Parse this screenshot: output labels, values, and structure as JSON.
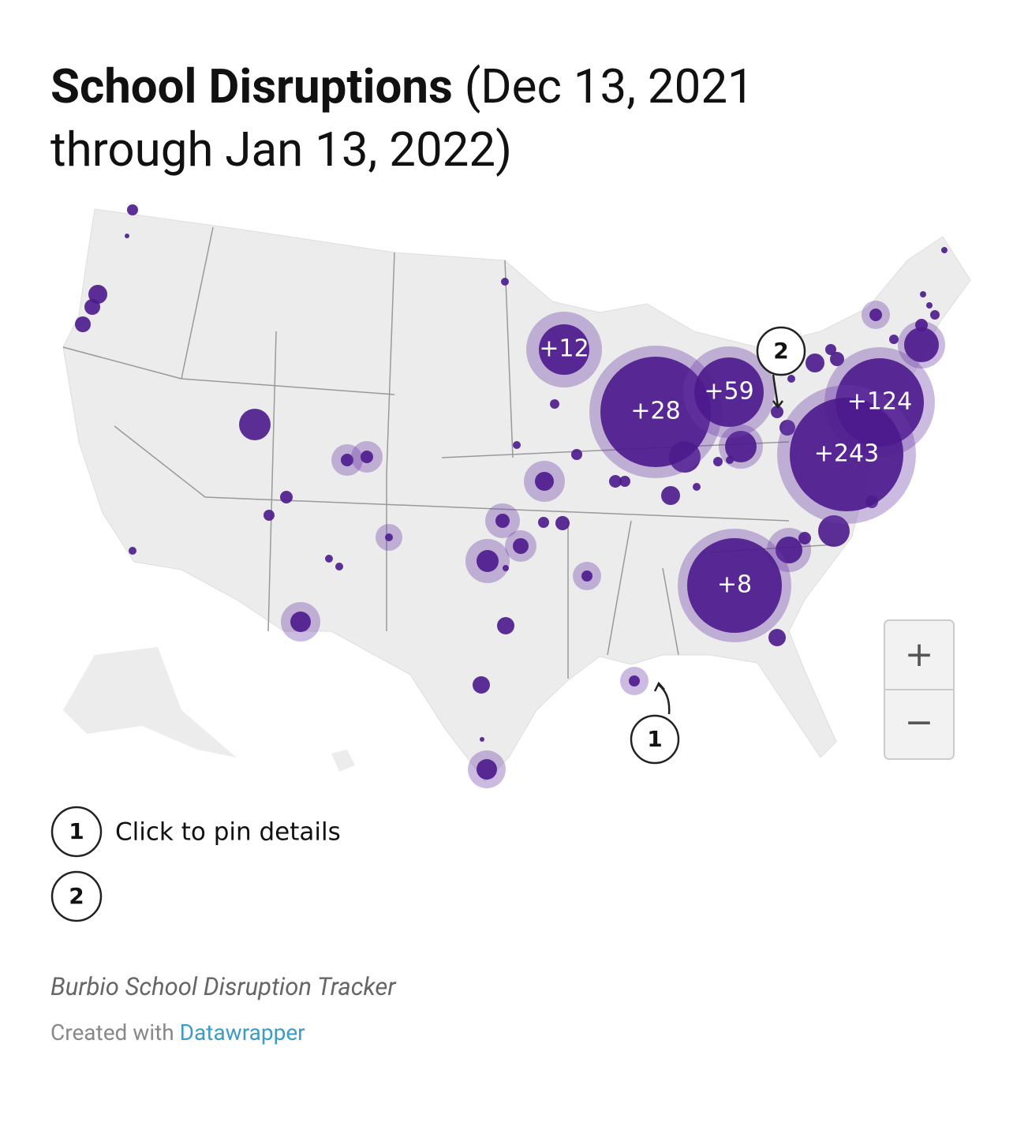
{
  "header": {
    "title_bold": "School Disruptions",
    "title_rest": "(Dec 13, 2021 through Jan 13, 2022)"
  },
  "map": {
    "clusters": [
      "+12",
      "+28",
      "+59",
      "+124",
      "+243",
      "+8"
    ],
    "markers": [
      "1",
      "2"
    ]
  },
  "zoom": {
    "in": "+",
    "out": "−"
  },
  "legend": [
    {
      "number": "1",
      "text": "Click to pin details"
    },
    {
      "number": "2"
    }
  ],
  "footer": {
    "source": "Burbio School Disruption Tracker",
    "credit": "Created with",
    "link": "Datawrapper"
  }
}
